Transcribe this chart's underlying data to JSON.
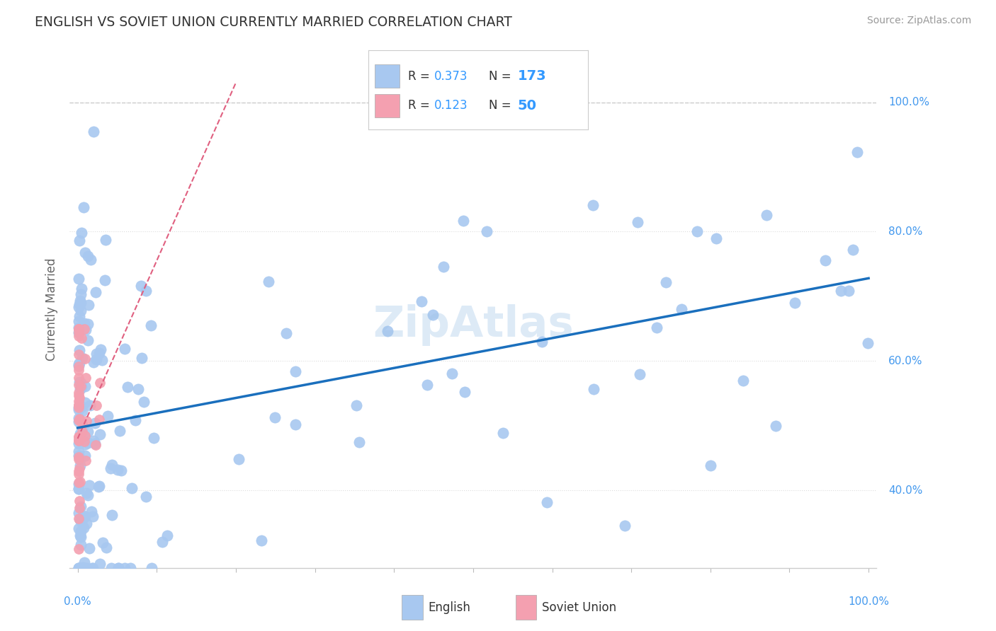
{
  "title": "ENGLISH VS SOVIET UNION CURRENTLY MARRIED CORRELATION CHART",
  "source": "Source: ZipAtlas.com",
  "ylabel": "Currently Married",
  "legend_english_R": "0.373",
  "legend_english_N": "173",
  "legend_soviet_R": "0.123",
  "legend_soviet_N": "50",
  "legend_label_english": "English",
  "legend_label_soviet": "Soviet Union",
  "english_color": "#a8c8f0",
  "soviet_color": "#f4a0b0",
  "trendline_english_color": "#1a6fbd",
  "trendline_soviet_color": "#e06080",
  "background_color": "#ffffff",
  "watermark_color": "#a0c4e8",
  "watermark_text": "ZipAtlas",
  "right_label_color": "#4499ee",
  "axis_label_color": "#4499ee",
  "title_color": "#333333",
  "source_color": "#999999",
  "ylabel_color": "#666666",
  "legend_text_color": "#333333",
  "legend_value_color": "#3399ff",
  "yticks": [
    40,
    60,
    80,
    100
  ],
  "ytick_labels": [
    "40.0%",
    "60.0%",
    "80.0%",
    "100.0%"
  ],
  "ylim_bottom": 28,
  "ylim_top": 108,
  "xlim_left": -1,
  "xlim_right": 101
}
